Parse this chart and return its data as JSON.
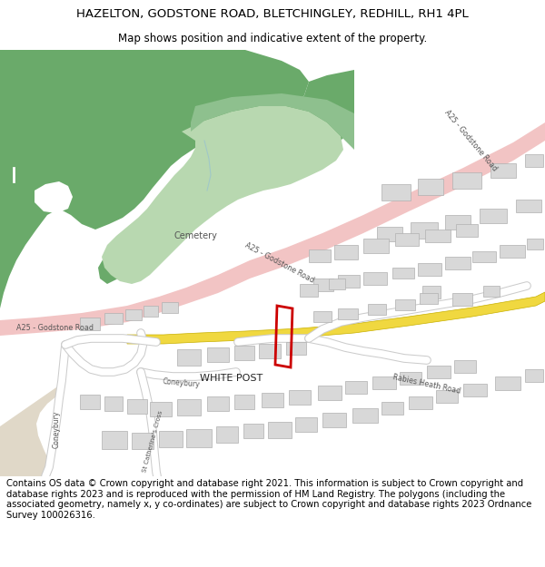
{
  "title_line1": "HAZELTON, GODSTONE ROAD, BLETCHINGLEY, REDHILL, RH1 4PL",
  "title_line2": "Map shows position and indicative extent of the property.",
  "footer_text": "Contains OS data © Crown copyright and database right 2021. This information is subject to Crown copyright and database rights 2023 and is reproduced with the permission of HM Land Registry. The polygons (including the associated geometry, namely x, y co-ordinates) are subject to Crown copyright and database rights 2023 Ordnance Survey 100026316.",
  "map_bg": "#ffffff",
  "road_a25_color": "#f2c4c4",
  "green_dark": "#6aaa6a",
  "green_mid": "#8ec08e",
  "green_light": "#b8d8b0",
  "green_pale": "#cce8cc",
  "building_color": "#d8d8d8",
  "building_border": "#b0b0b0",
  "plot_border": "#cc0000",
  "road_yellow_color": "#f0d840",
  "road_yellow_border": "#c8b000",
  "tan_area": "#e8dcc8",
  "title_fontsize": 9.5,
  "subtitle_fontsize": 8.5,
  "footer_fontsize": 7.2
}
